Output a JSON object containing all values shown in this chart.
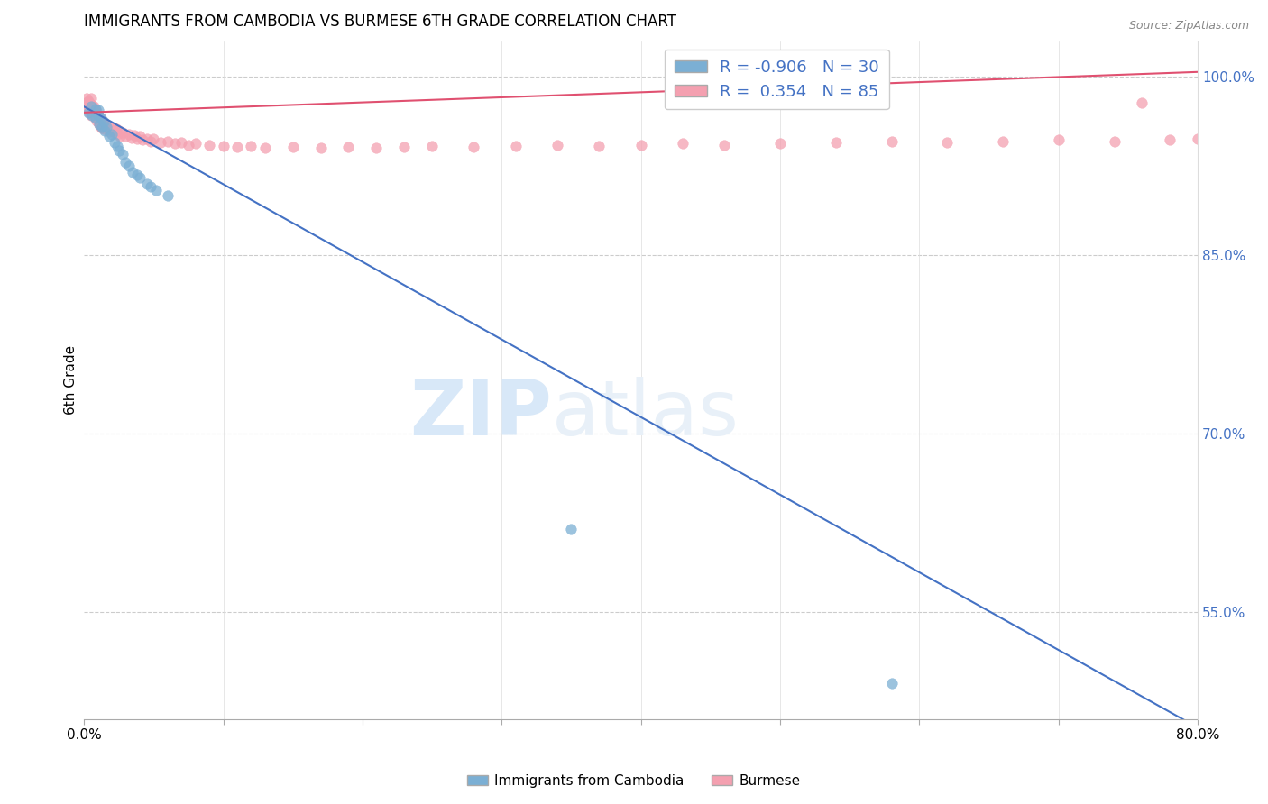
{
  "title": "IMMIGRANTS FROM CAMBODIA VS BURMESE 6TH GRADE CORRELATION CHART",
  "source": "Source: ZipAtlas.com",
  "ylabel": "6th Grade",
  "xlim": [
    0.0,
    0.8
  ],
  "ylim": [
    0.46,
    1.03
  ],
  "xticks": [
    0.0,
    0.1,
    0.2,
    0.3,
    0.4,
    0.5,
    0.6,
    0.7,
    0.8
  ],
  "xticklabels": [
    "0.0%",
    "",
    "",
    "",
    "",
    "",
    "",
    "",
    "80.0%"
  ],
  "right_yticks": [
    0.55,
    0.7,
    0.85,
    1.0
  ],
  "right_yticklabels": [
    "55.0%",
    "70.0%",
    "85.0%",
    "100.0%"
  ],
  "blue_R": -0.906,
  "blue_N": 30,
  "pink_R": 0.354,
  "pink_N": 85,
  "blue_color": "#7BAFD4",
  "pink_color": "#F4A0B0",
  "blue_line_color": "#4472C4",
  "pink_line_color": "#E05070",
  "watermark_zip": "ZIP",
  "watermark_atlas": "atlas",
  "watermark_color": "#D8E8F8",
  "legend_label_blue": "Immigrants from Cambodia",
  "legend_label_pink": "Burmese",
  "blue_scatter_x": [
    0.003,
    0.005,
    0.006,
    0.008,
    0.008,
    0.01,
    0.01,
    0.011,
    0.012,
    0.013,
    0.014,
    0.015,
    0.016,
    0.018,
    0.02,
    0.022,
    0.024,
    0.025,
    0.028,
    0.03,
    0.032,
    0.035,
    0.038,
    0.04,
    0.045,
    0.048,
    0.052,
    0.06,
    0.35,
    0.58
  ],
  "blue_scatter_y": [
    0.97,
    0.975,
    0.968,
    0.973,
    0.965,
    0.968,
    0.972,
    0.96,
    0.965,
    0.958,
    0.962,
    0.955,
    0.958,
    0.95,
    0.952,
    0.945,
    0.942,
    0.938,
    0.935,
    0.928,
    0.925,
    0.92,
    0.918,
    0.915,
    0.91,
    0.908,
    0.905,
    0.9,
    0.62,
    0.49
  ],
  "pink_scatter_x": [
    0.001,
    0.002,
    0.002,
    0.003,
    0.003,
    0.004,
    0.004,
    0.005,
    0.005,
    0.005,
    0.006,
    0.006,
    0.007,
    0.007,
    0.008,
    0.008,
    0.009,
    0.009,
    0.01,
    0.01,
    0.011,
    0.011,
    0.012,
    0.012,
    0.013,
    0.013,
    0.014,
    0.014,
    0.015,
    0.016,
    0.017,
    0.018,
    0.019,
    0.02,
    0.021,
    0.022,
    0.023,
    0.024,
    0.025,
    0.026,
    0.028,
    0.03,
    0.032,
    0.034,
    0.036,
    0.038,
    0.04,
    0.042,
    0.045,
    0.048,
    0.05,
    0.055,
    0.06,
    0.065,
    0.07,
    0.075,
    0.08,
    0.09,
    0.1,
    0.11,
    0.12,
    0.13,
    0.15,
    0.17,
    0.19,
    0.21,
    0.23,
    0.25,
    0.28,
    0.31,
    0.34,
    0.37,
    0.4,
    0.43,
    0.46,
    0.5,
    0.54,
    0.58,
    0.62,
    0.66,
    0.7,
    0.74,
    0.78,
    0.8,
    0.76
  ],
  "pink_scatter_y": [
    0.978,
    0.982,
    0.975,
    0.98,
    0.972,
    0.978,
    0.97,
    0.982,
    0.975,
    0.968,
    0.976,
    0.97,
    0.975,
    0.968,
    0.972,
    0.965,
    0.97,
    0.963,
    0.968,
    0.962,
    0.966,
    0.96,
    0.965,
    0.958,
    0.963,
    0.957,
    0.961,
    0.956,
    0.96,
    0.958,
    0.956,
    0.954,
    0.958,
    0.955,
    0.957,
    0.953,
    0.956,
    0.952,
    0.955,
    0.95,
    0.953,
    0.95,
    0.952,
    0.949,
    0.951,
    0.948,
    0.95,
    0.947,
    0.948,
    0.946,
    0.948,
    0.945,
    0.946,
    0.944,
    0.945,
    0.943,
    0.944,
    0.943,
    0.942,
    0.941,
    0.942,
    0.94,
    0.941,
    0.94,
    0.941,
    0.94,
    0.941,
    0.942,
    0.941,
    0.942,
    0.943,
    0.942,
    0.943,
    0.944,
    0.943,
    0.944,
    0.945,
    0.946,
    0.945,
    0.946,
    0.947,
    0.946,
    0.947,
    0.948,
    0.978
  ]
}
